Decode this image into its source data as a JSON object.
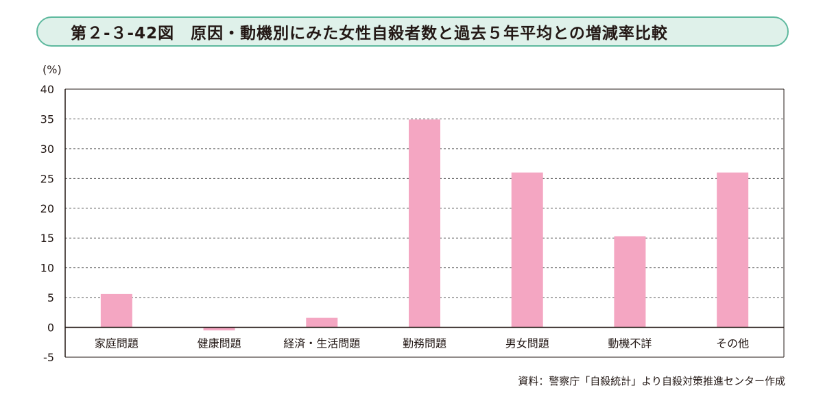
{
  "title": "第２-３-42図　原因・動機別にみた女性自殺者数と過去５年平均との増減率比較",
  "unit_label": "(%)",
  "source": "資料：警察庁「自殺統計」より自殺対策推進センター作成",
  "colors": {
    "bar": "#f4a6c2",
    "title_bg": "#dff1ea",
    "title_border": "#5cb89d",
    "grid": "#555555",
    "axis": "#231815"
  },
  "chart_data": {
    "type": "bar",
    "categories": [
      "家庭問題",
      "健康問題",
      "経済・生活問題",
      "勤務問題",
      "男女問題",
      "動機不詳",
      "その他"
    ],
    "values": [
      5.6,
      -0.5,
      1.6,
      34.9,
      26.0,
      15.3,
      26.0
    ],
    "ylabel": "(%)",
    "ylim": [
      -5,
      40
    ],
    "yticks": [
      -5,
      0,
      5,
      10,
      15,
      20,
      25,
      30,
      35,
      40
    ],
    "grid": true,
    "legend": "none"
  }
}
